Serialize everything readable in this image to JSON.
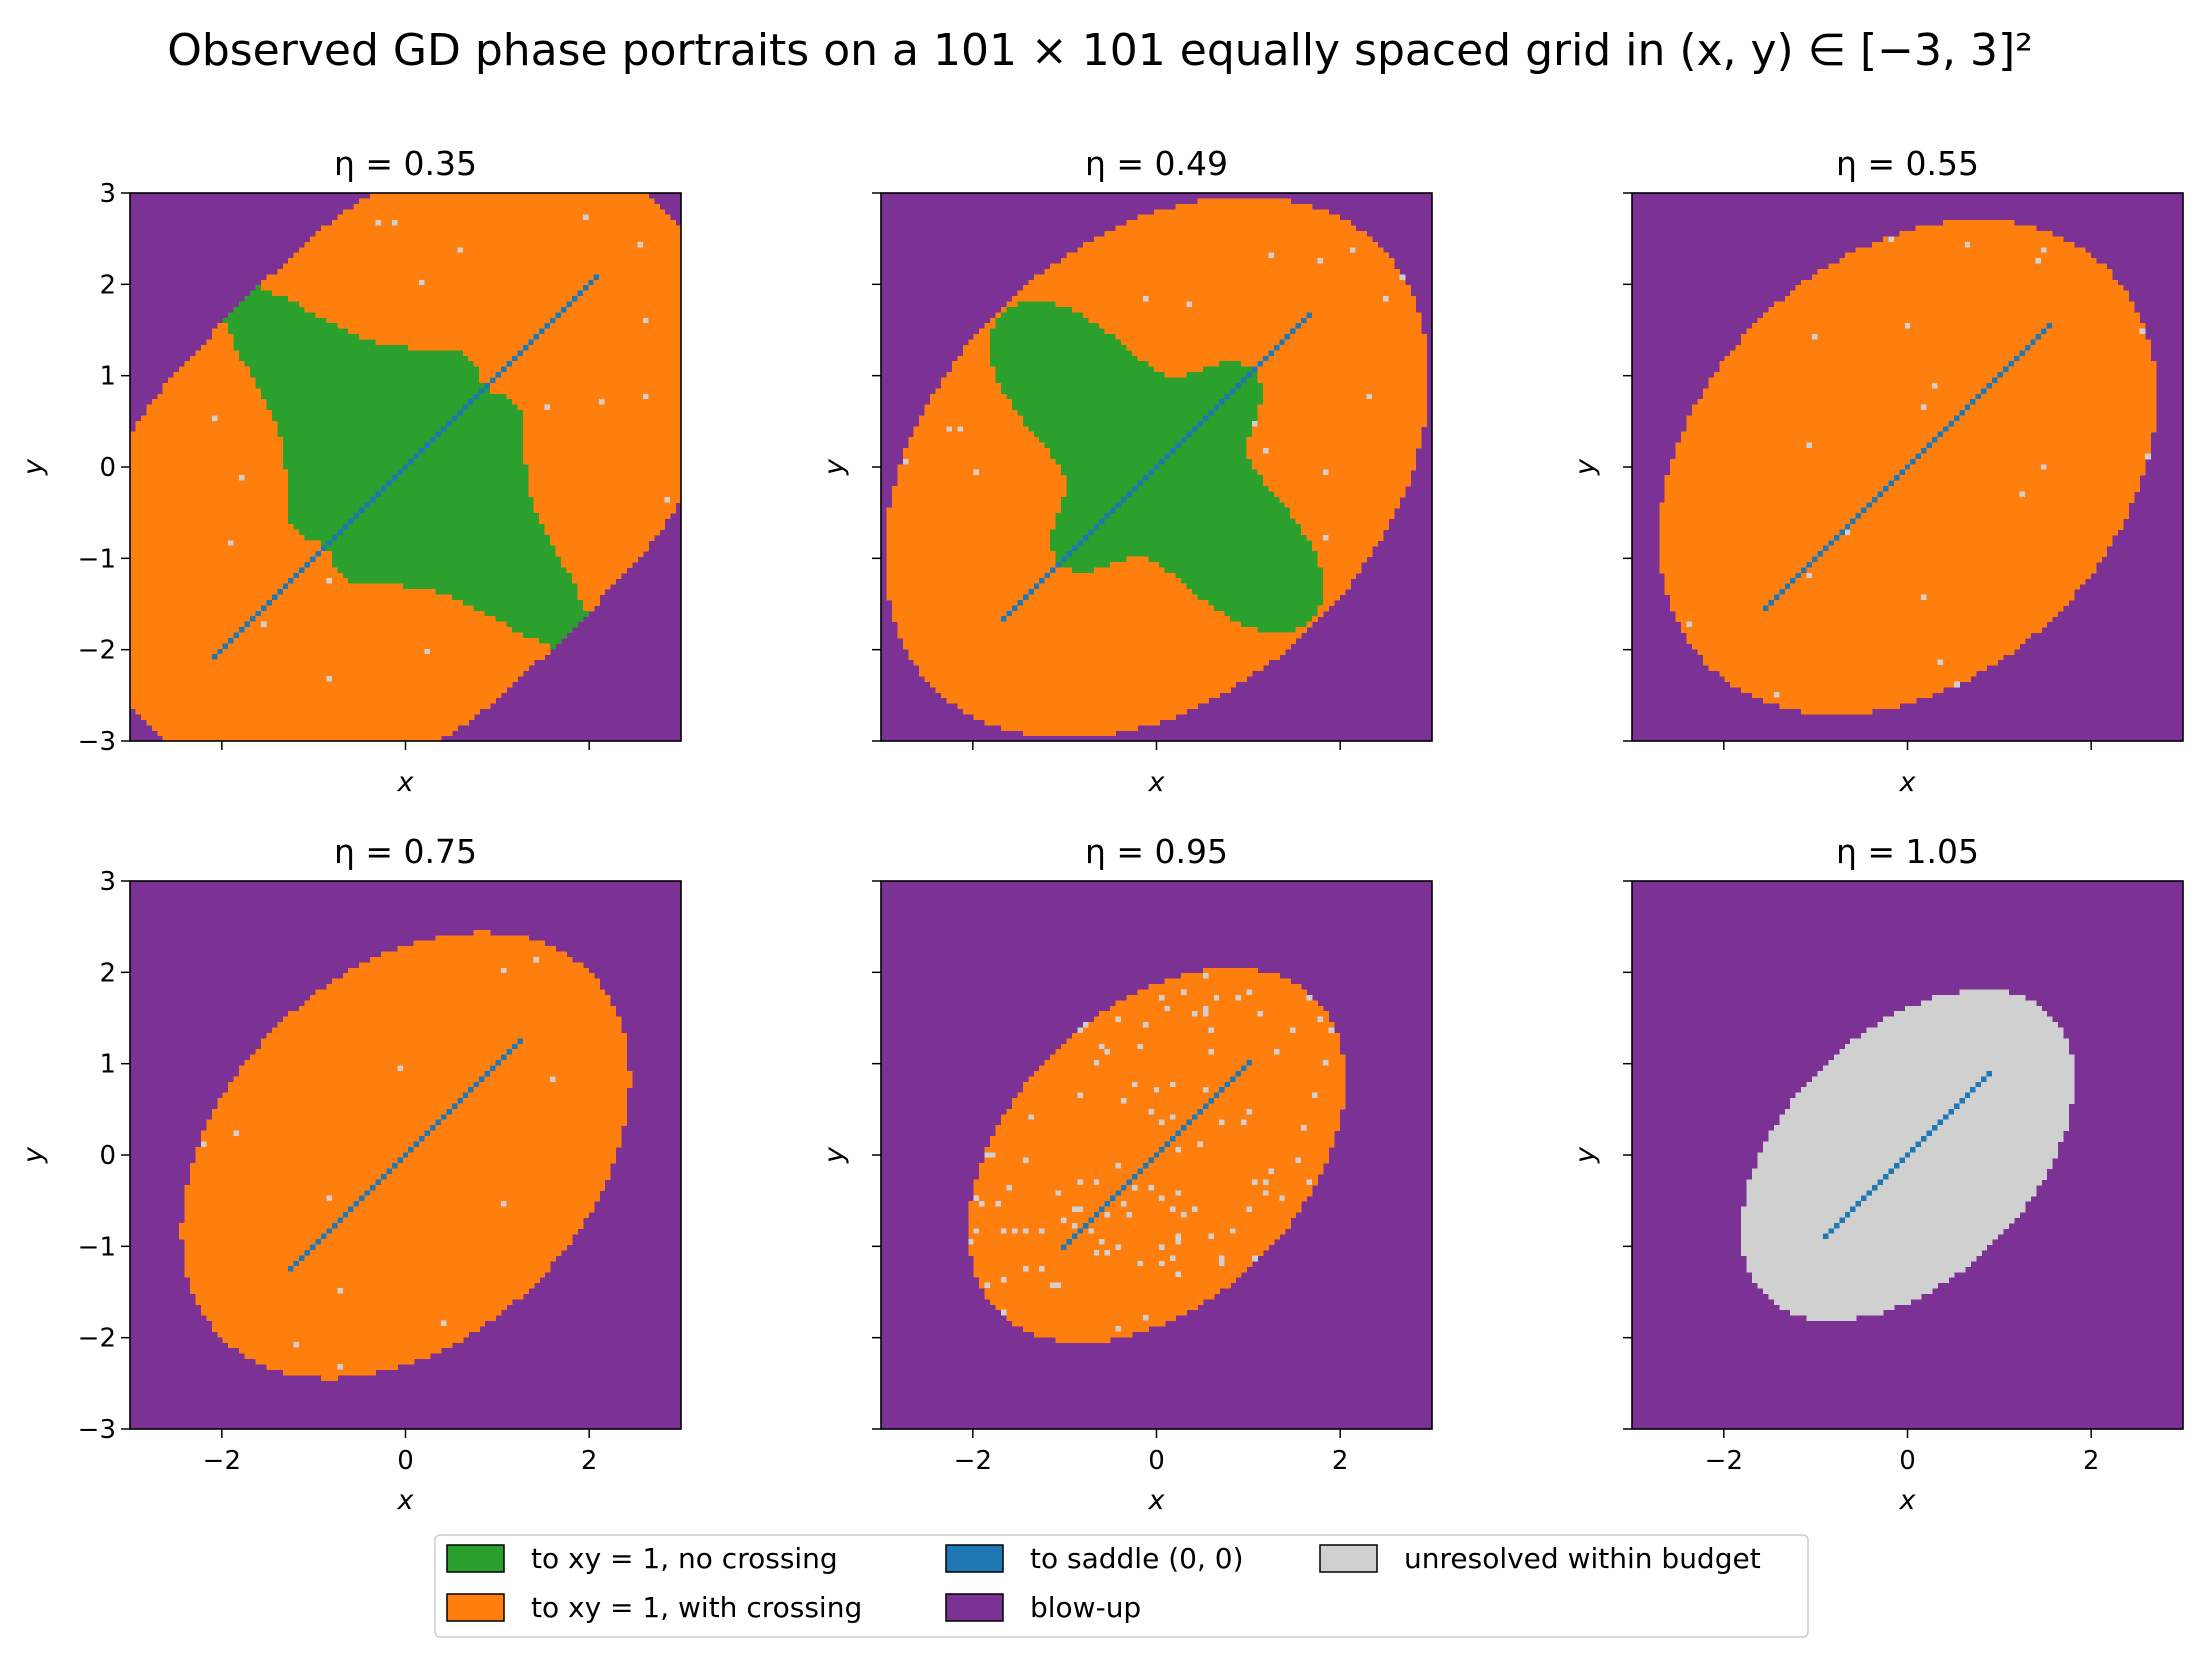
{
  "chart_data": {
    "type": "heatmap",
    "suptitle": "Observed GD phase portraits on a 101 × 101 equally spaced grid in (x, y) ∈ [−3, 3]²",
    "grid": {
      "n": 101,
      "xlim": [
        -3,
        3
      ],
      "ylim": [
        -3,
        3
      ]
    },
    "xlabel": "x",
    "ylabel": "y",
    "xticks": [
      -2,
      0,
      2
    ],
    "yticks": [
      -3,
      -2,
      -1,
      0,
      1,
      2,
      3
    ],
    "xtick_labels": [
      "−2",
      "0",
      "2"
    ],
    "ytick_labels": [
      "−3",
      "−2",
      "−1",
      "0",
      "1",
      "2",
      "3"
    ],
    "colors": {
      "no_crossing": "#2ca02c",
      "with_crossing": "#ff7f0e",
      "saddle": "#1f77b4",
      "blowup": "#7b3294",
      "unresolved": "#d0d0d0"
    },
    "legend": {
      "placement": "bottom-center",
      "entries": [
        {
          "key": "no_crossing",
          "label": "to xy = 1, no crossing"
        },
        {
          "key": "with_crossing",
          "label": "to xy = 1, with crossing"
        },
        {
          "key": "saddle",
          "label": "to saddle (0, 0)"
        },
        {
          "key": "blowup",
          "label": "blow-up"
        },
        {
          "key": "unresolved",
          "label": "unresolved within budget"
        }
      ]
    },
    "panels": [
      {
        "title": "η = 0.35",
        "eta": 0.35,
        "basin": {
          "rx": 4.0,
          "ry": 2.55,
          "angle_deg": 45,
          "shape": "superellipse"
        },
        "no_crossing_region": {
          "half_diag": 3.05,
          "half_width": 0.82,
          "bulge": 0.55
        },
        "saddle_line_extent": 2.15,
        "interior": "with_crossing"
      },
      {
        "title": "η = 0.49",
        "eta": 0.49,
        "basin": {
          "rx": 3.45,
          "ry": 2.45,
          "angle_deg": 45,
          "shape": "ellipse"
        },
        "no_crossing_region": {
          "half_diag": 2.45,
          "half_width": 1.3,
          "bulge": 0,
          "shape": "star"
        },
        "saddle_line_extent": 1.73,
        "interior": "with_crossing"
      },
      {
        "title": "η = 0.55",
        "eta": 0.55,
        "basin": {
          "rx": 3.1,
          "ry": 2.3,
          "angle_deg": 45,
          "shape": "ellipse"
        },
        "saddle_line_extent": 1.6,
        "interior": "with_crossing"
      },
      {
        "title": "η = 0.75",
        "eta": 0.75,
        "basin": {
          "rx": 2.85,
          "ry": 2.0,
          "angle_deg": 45,
          "shape": "ellipse"
        },
        "saddle_line_extent": 1.3,
        "interior": "with_crossing"
      },
      {
        "title": "η = 0.95",
        "eta": 0.95,
        "basin": {
          "rx": 2.45,
          "ry": 1.6,
          "angle_deg": 45,
          "shape": "ellipse"
        },
        "saddle_line_extent": 1.03,
        "interior": "with_crossing",
        "unresolved_speckle": true
      },
      {
        "title": "η = 1.05",
        "eta": 1.05,
        "basin": {
          "rx": 2.2,
          "ry": 1.35,
          "angle_deg": 45,
          "shape": "ellipse"
        },
        "saddle_line_extent": 0.93,
        "interior": "unresolved"
      }
    ]
  }
}
